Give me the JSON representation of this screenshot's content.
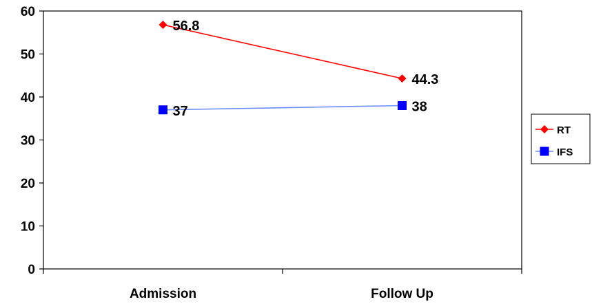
{
  "chart_data": {
    "type": "line",
    "categories": [
      "Admission",
      "Follow Up"
    ],
    "ylim": [
      0,
      60
    ],
    "yticks": [
      0,
      10,
      20,
      30,
      40,
      50,
      60
    ],
    "grid": false,
    "legend": "right",
    "series": [
      {
        "name": "RT",
        "values": [
          56.8,
          44.3
        ],
        "labels": [
          "56.8",
          "44.3"
        ],
        "color": "#ff0000",
        "marker": "diamond"
      },
      {
        "name": "IFS",
        "values": [
          37,
          38
        ],
        "labels": [
          "37",
          "38"
        ],
        "color": "#0000ff",
        "line_color": "#6b8cff",
        "marker": "square"
      }
    ]
  }
}
